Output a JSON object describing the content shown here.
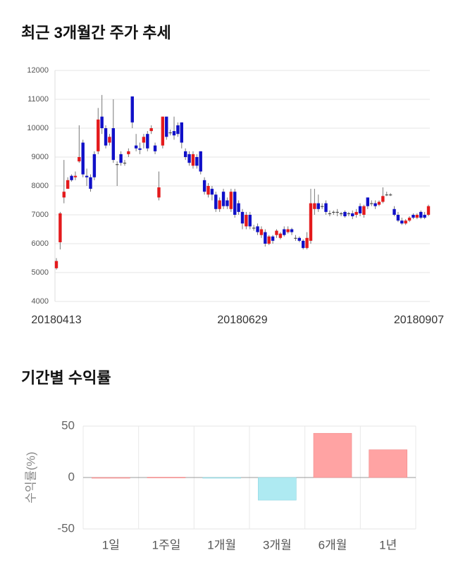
{
  "chart_data": [
    {
      "type": "candlestick",
      "title": "최근 3개월간 주가 추세",
      "categories": [
        "20180413",
        null,
        null,
        null,
        null,
        null,
        null,
        null,
        null,
        null,
        null,
        null,
        null,
        null,
        null,
        null,
        null,
        null,
        null,
        null,
        null,
        null,
        null,
        null,
        null,
        null,
        null,
        null,
        null,
        null,
        null,
        null,
        null,
        null,
        null,
        null,
        null,
        null,
        null,
        null,
        null,
        null,
        null,
        null,
        null,
        null,
        null,
        null,
        null,
        "20180629",
        null,
        null,
        null,
        null,
        null,
        null,
        null,
        null,
        null,
        null,
        null,
        null,
        null,
        null,
        null,
        null,
        null,
        null,
        null,
        null,
        null,
        null,
        null,
        null,
        null,
        null,
        null,
        null,
        null,
        null,
        null,
        null,
        null,
        null,
        null,
        null,
        null,
        null,
        null,
        null,
        null,
        null,
        null,
        null,
        null,
        null,
        null,
        null,
        "20180907"
      ],
      "open": [
        5150,
        6050,
        7600,
        7900,
        8350,
        8300,
        8850,
        9500,
        8350,
        8300,
        9100,
        9200,
        10400,
        10000,
        9500,
        10000,
        8750,
        9100,
        8800,
        9100,
        11100,
        9400,
        9300,
        9500,
        9800,
        9900,
        9400,
        7600,
        9400,
        10400,
        9850,
        9900,
        10100,
        10200,
        9200,
        9100,
        8700,
        9000,
        9200,
        8200,
        7700,
        7900,
        7700,
        7200,
        7800,
        7500,
        7200,
        7800,
        7400,
        7100,
        6600,
        7000,
        6550,
        6600,
        6300,
        6400,
        6000,
        6250,
        6300,
        6200,
        6500,
        6400,
        6500,
        6200,
        6200,
        6100,
        5850,
        6100,
        7200,
        7400,
        7300,
        7400,
        7050,
        7100,
        7100,
        7050,
        7100,
        7050,
        7050,
        7000,
        7300,
        7000,
        7600,
        7400,
        7400,
        7350,
        7450,
        7700,
        7700,
        7200,
        7000,
        6800,
        6700,
        6800,
        7000,
        6900,
        7100,
        7000,
        7000
      ],
      "high": [
        5500,
        7100,
        8900,
        8300,
        8400,
        8500,
        10100,
        9600,
        8600,
        8400,
        9200,
        10700,
        11150,
        10100,
        9800,
        11000,
        8850,
        9200,
        8900,
        9300,
        11100,
        9800,
        9500,
        9800,
        9900,
        10100,
        9500,
        8500,
        10400,
        10400,
        9950,
        10400,
        10200,
        10200,
        9300,
        9200,
        9200,
        9100,
        9200,
        8300,
        8100,
        8000,
        7800,
        7600,
        7900,
        7600,
        7900,
        7900,
        7500,
        7200,
        7100,
        7100,
        6650,
        6700,
        6600,
        6500,
        6300,
        6300,
        6500,
        6400,
        6600,
        6600,
        6550,
        6300,
        6250,
        6150,
        6400,
        7900,
        7900,
        7700,
        7400,
        7500,
        7150,
        7150,
        7200,
        7100,
        7150,
        7100,
        7150,
        7200,
        7400,
        7350,
        7600,
        7500,
        7500,
        7500,
        7950,
        7800,
        7750,
        7300,
        7100,
        6900,
        6850,
        6950,
        7050,
        7050,
        7150,
        7100,
        7350
      ],
      "low": [
        5100,
        5800,
        7400,
        7900,
        8150,
        8200,
        8800,
        8300,
        8000,
        7800,
        8200,
        9100,
        9800,
        9300,
        9400,
        8800,
        8000,
        8700,
        8700,
        9000,
        10000,
        9200,
        9100,
        9300,
        9200,
        9800,
        9100,
        7500,
        9300,
        9600,
        9750,
        9600,
        9700,
        9300,
        8900,
        8700,
        8600,
        8600,
        8400,
        7700,
        7600,
        7500,
        7100,
        7100,
        7200,
        7200,
        7100,
        6900,
        7000,
        6500,
        6500,
        6500,
        6450,
        6300,
        6200,
        5900,
        5950,
        6000,
        6200,
        6150,
        6250,
        6350,
        6300,
        6100,
        6050,
        5800,
        5800,
        6000,
        7000,
        7100,
        7200,
        7000,
        6950,
        7000,
        6950,
        6950,
        6900,
        6950,
        6850,
        6900,
        6950,
        6900,
        7200,
        7300,
        7200,
        7300,
        7400,
        7650,
        7650,
        6950,
        6750,
        6650,
        6650,
        6750,
        6850,
        6850,
        6850,
        6850,
        6950
      ],
      "close": [
        5400,
        7050,
        7800,
        8200,
        8200,
        8350,
        9000,
        8400,
        8300,
        7900,
        8300,
        10300,
        10000,
        9400,
        9700,
        8900,
        8750,
        8800,
        8800,
        9200,
        10200,
        9300,
        9250,
        9700,
        9300,
        10000,
        9200,
        7950,
        10400,
        9700,
        9850,
        9750,
        9800,
        9500,
        9000,
        8800,
        9100,
        8700,
        8500,
        7800,
        8000,
        7700,
        7200,
        7500,
        7300,
        7300,
        7800,
        7000,
        7100,
        6700,
        7000,
        6600,
        6550,
        6400,
        6500,
        6000,
        6250,
        6100,
        6450,
        6350,
        6300,
        6500,
        6400,
        6200,
        6100,
        5850,
        6200,
        7400,
        7400,
        7200,
        7300,
        7100,
        7050,
        7100,
        7100,
        7050,
        6950,
        7050,
        6950,
        7100,
        7050,
        7300,
        7300,
        7400,
        7300,
        7450,
        7650,
        7700,
        7700,
        7000,
        6800,
        6700,
        6800,
        6900,
        6900,
        7000,
        6900,
        6900,
        7300
      ],
      "up_color": "#e41a1c",
      "down_color": "#1010c8",
      "ylim": [
        4000,
        12000
      ],
      "yticks": [
        4000,
        5000,
        6000,
        7000,
        8000,
        9000,
        10000,
        11000,
        12000
      ],
      "grid": true
    },
    {
      "type": "bar",
      "title": "기간별 수익률",
      "ylabel": "수익률(%)",
      "categories": [
        "1일",
        "1주일",
        "1개월",
        "3개월",
        "6개월",
        "1년"
      ],
      "values": [
        0,
        0.3,
        -0.5,
        -22,
        43,
        27
      ],
      "positive_color": "#ffa3a3",
      "negative_color": "#aeeaf2",
      "ylim": [
        -50,
        50
      ],
      "yticks": [
        -50,
        0,
        50
      ],
      "grid": true
    }
  ]
}
